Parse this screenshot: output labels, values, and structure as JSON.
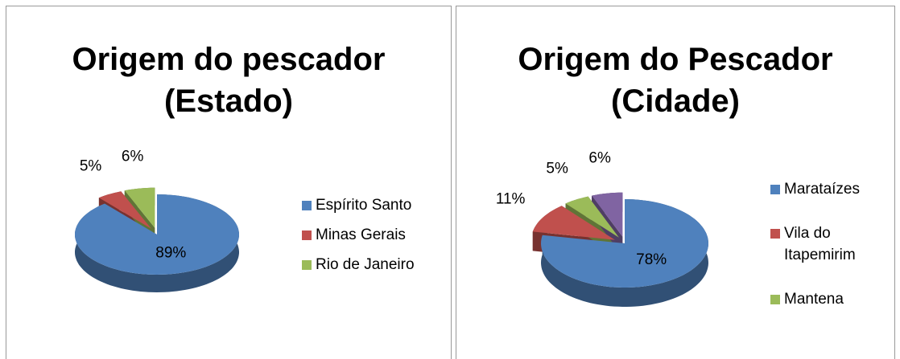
{
  "chart_data": [
    {
      "type": "pie",
      "title": "Origem do pescador (Estado)",
      "categories": [
        "Espírito Santo",
        "Minas Gerais",
        "Rio de Janeiro"
      ],
      "values": [
        89,
        5,
        6
      ],
      "value_labels": [
        "89%",
        "5%",
        "6%"
      ],
      "colors": [
        "#4f81bd",
        "#c0504d",
        "#9bbb59"
      ],
      "legend": "right"
    },
    {
      "type": "pie",
      "title": "Origem do Pescador (Cidade)",
      "categories": [
        "Marataízes",
        "Vila do Itapemirim",
        "Mantena",
        null
      ],
      "values": [
        78,
        11,
        5,
        6
      ],
      "value_labels": [
        "78%",
        "11%",
        "5%",
        "6%"
      ],
      "colors": [
        "#4f81bd",
        "#c0504d",
        "#9bbb59",
        "#8064a2"
      ],
      "legend": "right"
    }
  ]
}
